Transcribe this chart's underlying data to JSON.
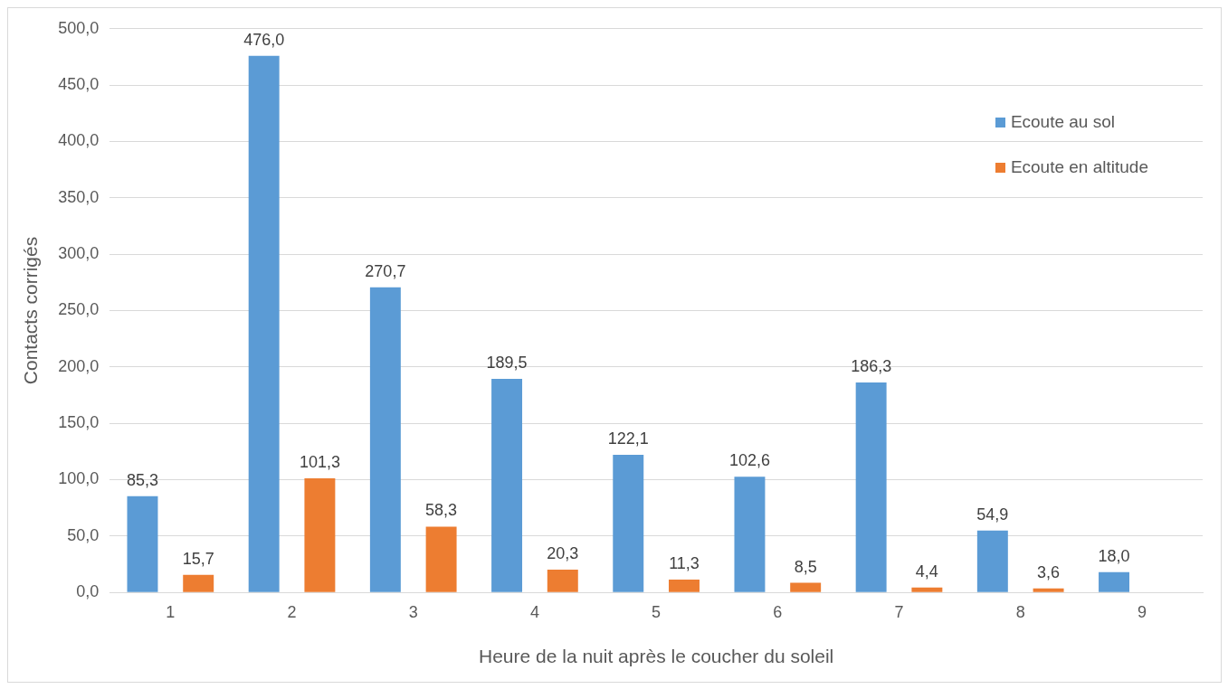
{
  "chart_data": {
    "type": "bar",
    "xlabel": "Heure de la nuit après le coucher du soleil",
    "ylabel": "Contacts corrigés",
    "categories": [
      "1",
      "2",
      "3",
      "4",
      "5",
      "6",
      "7",
      "8",
      "9"
    ],
    "series": [
      {
        "name": "Ecoute au sol",
        "color": "#5b9bd5",
        "values": [
          85.3,
          476.0,
          270.7,
          189.5,
          122.1,
          102.6,
          186.3,
          54.9,
          18.0
        ],
        "value_labels": [
          "85,3",
          "476,0",
          "270,7",
          "189,5",
          "122,1",
          "102,6",
          "186,3",
          "54,9",
          "18,0"
        ]
      },
      {
        "name": "Ecoute en altitude",
        "color": "#ed7d31",
        "values": [
          15.7,
          101.3,
          58.3,
          20.3,
          11.3,
          8.5,
          4.4,
          3.6,
          null
        ],
        "value_labels": [
          "15,7",
          "101,3",
          "58,3",
          "20,3",
          "11,3",
          "8,5",
          "4,4",
          "3,6",
          null
        ]
      }
    ],
    "ylim": [
      0,
      500
    ],
    "yticks": [
      {
        "value": 0,
        "label": "0,0"
      },
      {
        "value": 50,
        "label": "50,0"
      },
      {
        "value": 100,
        "label": "100,0"
      },
      {
        "value": 150,
        "label": "150,0"
      },
      {
        "value": 200,
        "label": "200,0"
      },
      {
        "value": 250,
        "label": "250,0"
      },
      {
        "value": 300,
        "label": "300,0"
      },
      {
        "value": 350,
        "label": "350,0"
      },
      {
        "value": 400,
        "label": "400,0"
      },
      {
        "value": 450,
        "label": "450,0"
      },
      {
        "value": 500,
        "label": "500,0"
      }
    ],
    "grid": "y",
    "legend": "top right"
  }
}
